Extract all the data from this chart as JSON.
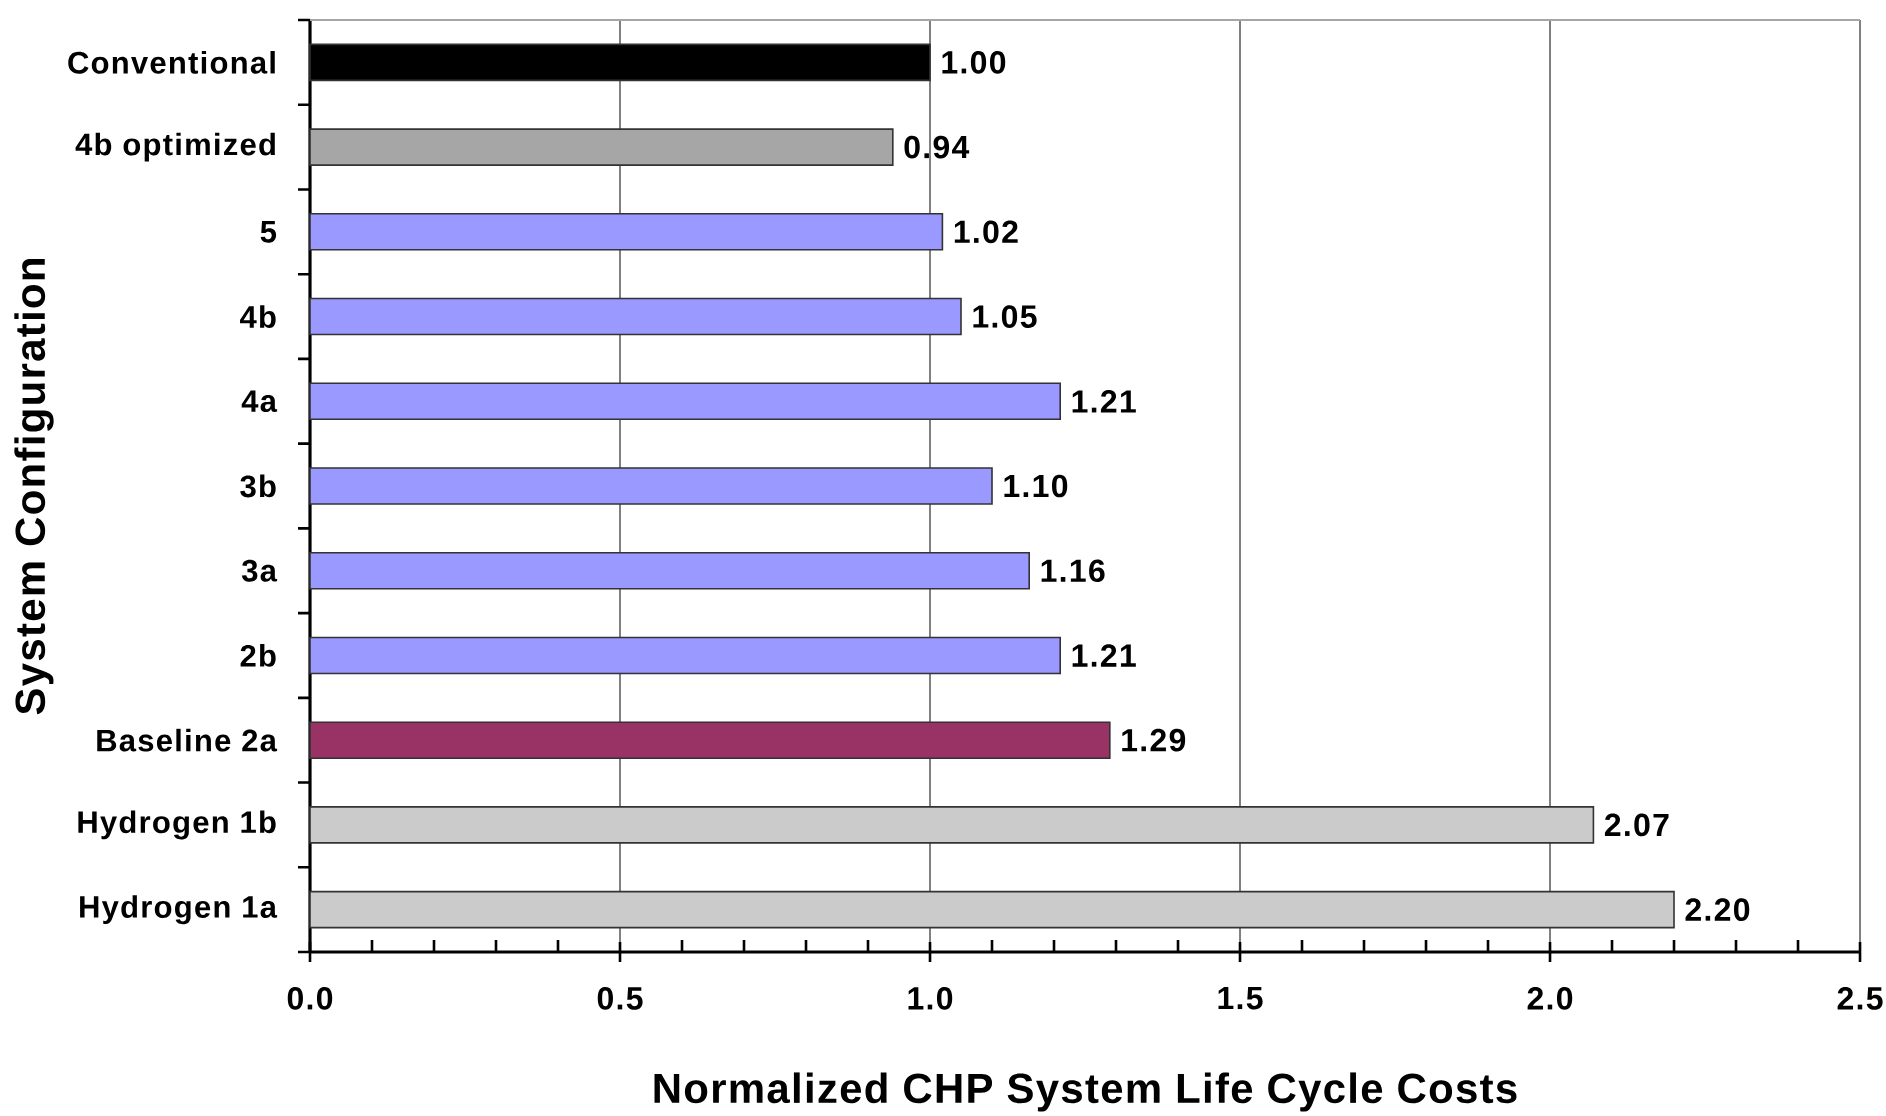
{
  "chart_data": {
    "type": "bar",
    "orientation": "horizontal",
    "xlabel": "Normalized CHP System Life Cycle Costs",
    "ylabel": "System Configuration",
    "categories": [
      "Conventional",
      "4b optimized",
      "5",
      "4b",
      "4a",
      "3b",
      "3a",
      "2b",
      "Baseline 2a",
      "Hydrogen 1b",
      "Hydrogen 1a"
    ],
    "values": [
      1.0,
      0.94,
      1.02,
      1.05,
      1.21,
      1.1,
      1.16,
      1.21,
      1.29,
      2.07,
      2.2
    ],
    "colors": [
      "#000000",
      "#a6a6a6",
      "#9999ff",
      "#9999ff",
      "#9999ff",
      "#9999ff",
      "#9999ff",
      "#9999ff",
      "#993366",
      "#cbcbcb",
      "#cbcbcb"
    ],
    "value_labels": [
      "1.00",
      "0.94",
      "1.02",
      "1.05",
      "1.21",
      "1.10",
      "1.16",
      "1.21",
      "1.29",
      "2.07",
      "2.20"
    ],
    "xlim": [
      0,
      2.5
    ],
    "xticks": [
      {
        "value": 0,
        "label": "0.0"
      },
      {
        "value": 0.1,
        "label": null
      },
      {
        "value": 0.2,
        "label": null
      },
      {
        "value": 0.3,
        "label": null
      },
      {
        "value": 0.4,
        "label": null
      },
      {
        "value": 0.5,
        "label": "0.5"
      },
      {
        "value": 0.6,
        "label": null
      },
      {
        "value": 0.7,
        "label": null
      },
      {
        "value": 0.8,
        "label": null
      },
      {
        "value": 0.9,
        "label": null
      },
      {
        "value": 1,
        "label": "1.0"
      },
      {
        "value": 1.1,
        "label": null
      },
      {
        "value": 1.2,
        "label": null
      },
      {
        "value": 1.3,
        "label": null
      },
      {
        "value": 1.4,
        "label": null
      },
      {
        "value": 1.5,
        "label": "1.5"
      },
      {
        "value": 1.6,
        "label": null
      },
      {
        "value": 1.7,
        "label": null
      },
      {
        "value": 1.8,
        "label": null
      },
      {
        "value": 1.9,
        "label": null
      },
      {
        "value": 2,
        "label": "2.0"
      },
      {
        "value": 2.1,
        "label": null
      },
      {
        "value": 2.2,
        "label": null
      },
      {
        "value": 2.3,
        "label": null
      },
      {
        "value": 2.4,
        "label": null
      },
      {
        "value": 2.5,
        "label": "2.5"
      }
    ],
    "grid": "x"
  }
}
